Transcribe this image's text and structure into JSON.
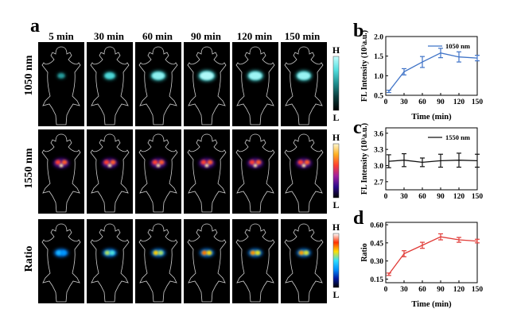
{
  "panel_labels": {
    "a": "a",
    "b": "b",
    "c": "c",
    "d": "d"
  },
  "times": [
    "5 min",
    "30 min",
    "60 min",
    "90 min",
    "120 min",
    "150 min"
  ],
  "rows": [
    {
      "label": "1050 nm",
      "colormap": "cyan",
      "colorbar": {
        "high": "H",
        "low": "L",
        "stops": [
          "#000000",
          "#0b3b3b",
          "#1f8f8f",
          "#54e0e0",
          "#c6ffff"
        ]
      },
      "signal": [
        0.18,
        0.55,
        0.85,
        1.0,
        0.92,
        0.9
      ]
    },
    {
      "label": "1550 nm",
      "colormap": "hot",
      "colorbar": {
        "high": "H",
        "low": "L",
        "stops": [
          "#000000",
          "#2a0a8a",
          "#a020a0",
          "#ff4030",
          "#ffb020",
          "#fff8d0"
        ]
      },
      "signal": [
        0.72,
        0.74,
        0.72,
        0.73,
        0.74,
        0.73
      ]
    },
    {
      "label": "Ratio",
      "colormap": "jet",
      "colorbar": {
        "high": "H",
        "low": "L",
        "stops": [
          "#000000",
          "#0018a0",
          "#0090ff",
          "#30e0ff",
          "#ffe000",
          "#ff3000",
          "#ffffff"
        ]
      },
      "signal": [
        0.2,
        0.55,
        0.7,
        0.85,
        0.8,
        0.78
      ]
    }
  ],
  "chart_data": [
    {
      "id": "b",
      "type": "line",
      "title": "",
      "xlabel": "Time (min)",
      "ylabel": "FL Intensity (10³a.u.)",
      "xlim": [
        0,
        150
      ],
      "ylim": [
        0.5,
        2.0
      ],
      "xticks": [
        0,
        30,
        60,
        90,
        120,
        150
      ],
      "yticks": [
        0.5,
        1.0,
        1.5,
        2.0
      ],
      "ytick_labels": [
        "0.5",
        "1.0",
        "1.5",
        "2.0"
      ],
      "legend": "top-right",
      "color": "#3f73c7",
      "series": [
        {
          "name": "1050 nm",
          "x": [
            5,
            30,
            60,
            90,
            120,
            150
          ],
          "y": [
            0.6,
            1.1,
            1.35,
            1.58,
            1.48,
            1.45
          ],
          "err": [
            0.03,
            0.08,
            0.14,
            0.12,
            0.13,
            0.07
          ]
        }
      ]
    },
    {
      "id": "c",
      "type": "line",
      "title": "",
      "xlabel": "",
      "ylabel": "FL Intensity (10³a.u.)",
      "xlim": [
        0,
        150
      ],
      "ylim": [
        2.55,
        3.7
      ],
      "xticks": [
        0,
        30,
        60,
        90,
        120,
        150
      ],
      "yticks": [
        2.7,
        3.0,
        3.3,
        3.6
      ],
      "ytick_labels": [
        "2.7",
        "3.0",
        "3.3",
        "3.6"
      ],
      "legend": "top-right",
      "color": "#111111",
      "series": [
        {
          "name": "1550 nm",
          "x": [
            5,
            30,
            60,
            90,
            120,
            150
          ],
          "y": [
            3.08,
            3.1,
            3.06,
            3.09,
            3.1,
            3.09
          ],
          "err": [
            0.12,
            0.12,
            0.08,
            0.12,
            0.13,
            0.12
          ]
        }
      ]
    },
    {
      "id": "d",
      "type": "line",
      "title": "",
      "xlabel": "Time (min)",
      "ylabel": "Ratio",
      "xlim": [
        0,
        150
      ],
      "ylim": [
        0.12,
        0.62
      ],
      "xticks": [
        0,
        30,
        60,
        90,
        120,
        150
      ],
      "yticks": [
        0.15,
        0.3,
        0.45,
        0.6
      ],
      "ytick_labels": [
        "0.15",
        "0.30",
        "0.45",
        "0.60"
      ],
      "legend": "none",
      "color": "#e03a36",
      "series": [
        {
          "name": "",
          "x": [
            5,
            30,
            60,
            90,
            120,
            150
          ],
          "y": [
            0.19,
            0.36,
            0.43,
            0.5,
            0.475,
            0.465
          ],
          "err": [
            0.01,
            0.025,
            0.025,
            0.025,
            0.02,
            0.015
          ]
        }
      ]
    }
  ]
}
